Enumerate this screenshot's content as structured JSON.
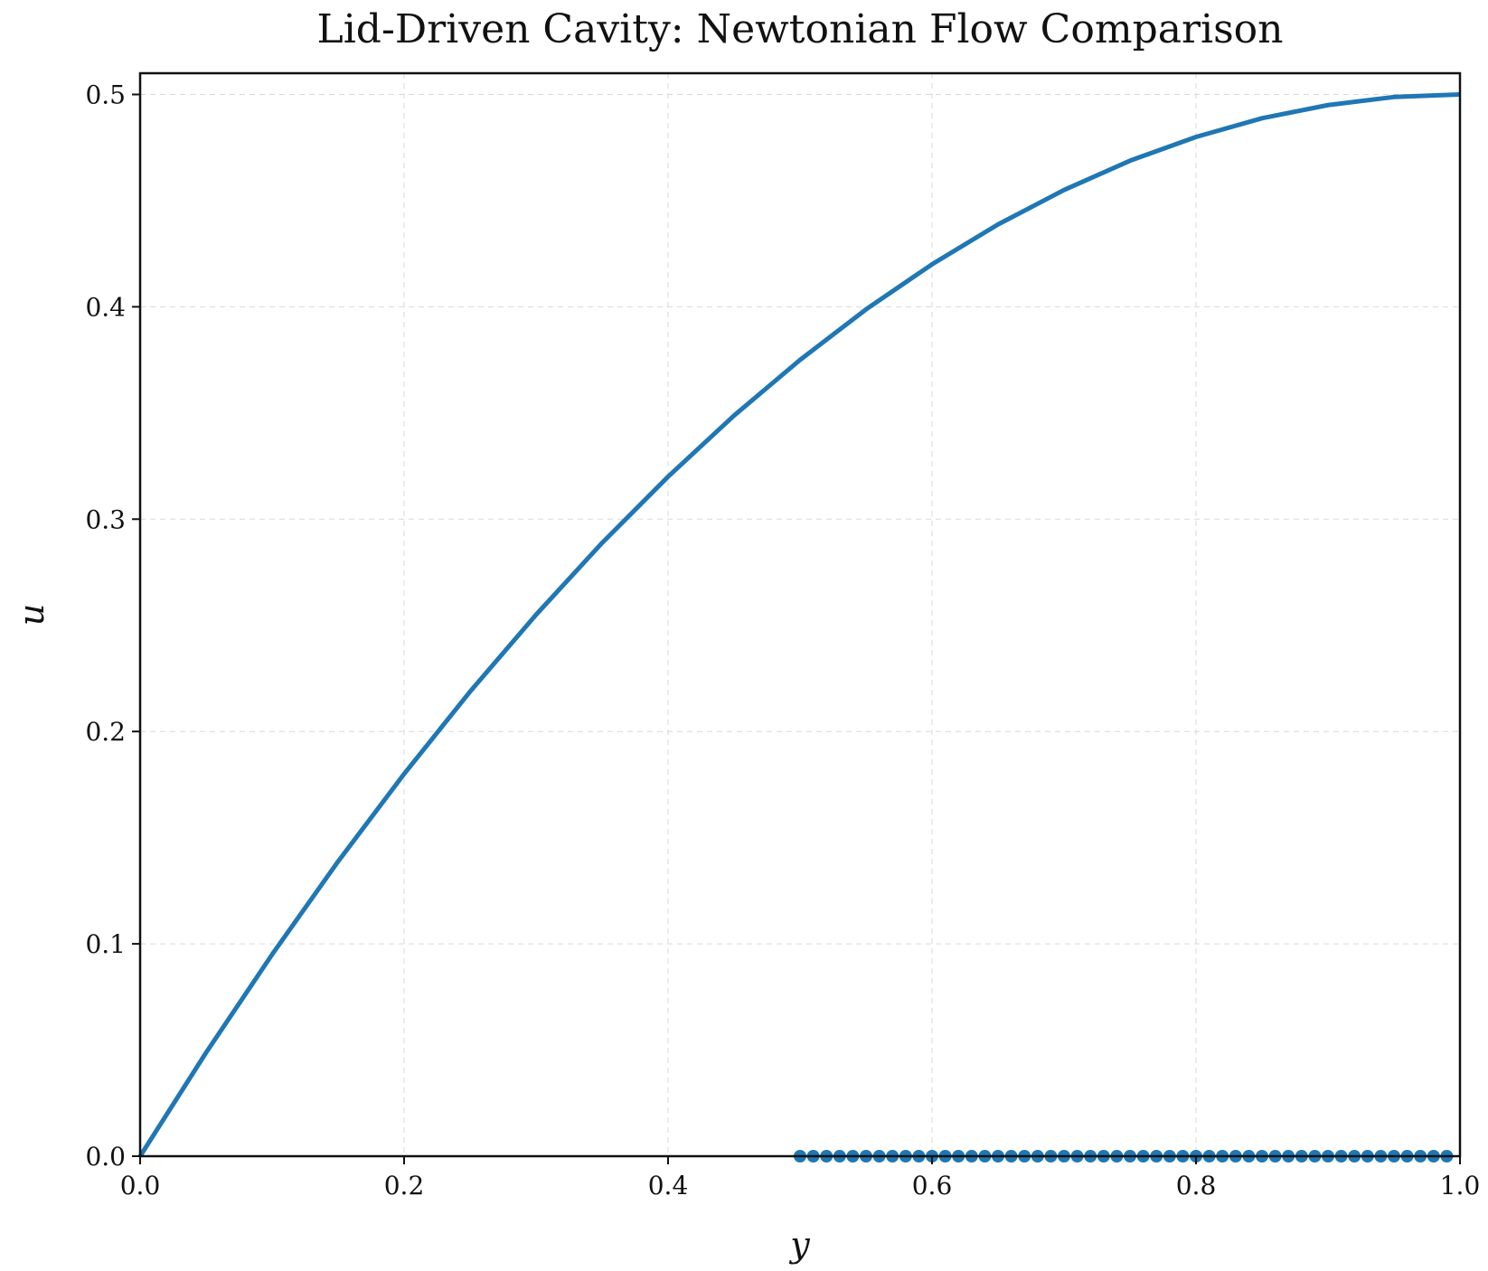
{
  "chart_data": {
    "type": "line",
    "title": "Lid-Driven Cavity: Newtonian Flow Comparison",
    "xlabel": "y",
    "ylabel": "u",
    "xlim": [
      0.0,
      1.0
    ],
    "ylim": [
      0.0,
      0.51
    ],
    "x_ticks": [
      "0.0",
      "0.2",
      "0.4",
      "0.6",
      "0.8",
      "1.0"
    ],
    "y_ticks": [
      "0.0",
      "0.1",
      "0.2",
      "0.3",
      "0.4",
      "0.5"
    ],
    "grid": true,
    "series": [
      {
        "kind": "line",
        "color": "#1f77b4",
        "x": [
          0.0,
          0.05,
          0.1,
          0.15,
          0.2,
          0.25,
          0.3,
          0.35,
          0.4,
          0.45,
          0.5,
          0.55,
          0.6,
          0.65,
          0.7,
          0.75,
          0.8,
          0.85,
          0.9,
          0.95,
          1.0
        ],
        "y": [
          0.0,
          0.0488,
          0.095,
          0.1388,
          0.18,
          0.2188,
          0.255,
          0.2888,
          0.32,
          0.3488,
          0.375,
          0.3988,
          0.42,
          0.4388,
          0.455,
          0.4688,
          0.48,
          0.4888,
          0.495,
          0.4988,
          0.5
        ]
      },
      {
        "kind": "scatter",
        "color": "#1f77b4",
        "x": [
          0.5,
          0.51,
          0.52,
          0.53,
          0.54,
          0.55,
          0.56,
          0.57,
          0.58,
          0.59,
          0.6,
          0.61,
          0.62,
          0.63,
          0.64,
          0.65,
          0.66,
          0.67,
          0.68,
          0.69,
          0.7,
          0.71,
          0.72,
          0.73,
          0.74,
          0.75,
          0.76,
          0.77,
          0.78,
          0.79,
          0.8,
          0.81,
          0.82,
          0.83,
          0.84,
          0.85,
          0.86,
          0.87,
          0.88,
          0.89,
          0.9,
          0.91,
          0.92,
          0.93,
          0.94,
          0.95,
          0.96,
          0.97,
          0.98,
          0.99
        ],
        "y": [
          0,
          0,
          0,
          0,
          0,
          0,
          0,
          0,
          0,
          0,
          0,
          0,
          0,
          0,
          0,
          0,
          0,
          0,
          0,
          0,
          0,
          0,
          0,
          0,
          0,
          0,
          0,
          0,
          0,
          0,
          0,
          0,
          0,
          0,
          0,
          0,
          0,
          0,
          0,
          0,
          0,
          0,
          0,
          0,
          0,
          0,
          0,
          0,
          0,
          0
        ]
      }
    ]
  }
}
